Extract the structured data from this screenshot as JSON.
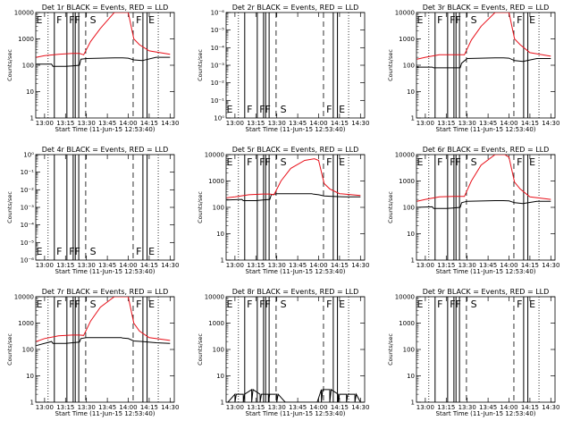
{
  "figure": {
    "xlabel": "Start Time (11-Jun-15 12:53:40)",
    "ylabel": "Counts/sec",
    "x_tick_labels": [
      "13:00",
      "13:15",
      "13:30",
      "13:45",
      "14:00",
      "14:15",
      "14:30"
    ],
    "y_tick_labels": [
      "1",
      "10",
      "100",
      "1000",
      "10000"
    ],
    "flag_letters": [
      "E",
      "F",
      "FF",
      "S",
      "F",
      "E"
    ],
    "colors": {
      "events": "#000000",
      "lld": "#e8101a"
    }
  },
  "chart_data": [
    {
      "type": "line",
      "title": "Det 1r BLACK = Events, RED = LLD",
      "xlim": [
        "12:53:40",
        "14:33:00"
      ],
      "ylim": [
        1,
        10000
      ],
      "yscale": "log",
      "series": [
        {
          "name": "Events",
          "x": [
            "12:54",
            "13:05",
            "13:06",
            "13:15",
            "13:20",
            "13:25",
            "13:26",
            "13:30",
            "13:50",
            "13:55",
            "13:56",
            "14:00",
            "14:04",
            "14:10",
            "14:20",
            "14:30"
          ],
          "y": [
            110,
            110,
            90,
            90,
            95,
            100,
            170,
            180,
            190,
            190,
            190,
            185,
            160,
            150,
            200,
            200
          ]
        },
        {
          "name": "LLD",
          "x": [
            "12:54",
            "13:00",
            "13:10",
            "13:20",
            "13:25",
            "13:28",
            "13:33",
            "13:40",
            "13:50",
            "13:57",
            "14:00",
            "14:04",
            "14:08",
            "14:15",
            "14:30"
          ],
          "y": [
            200,
            230,
            260,
            280,
            280,
            250,
            800,
            2500,
            10000,
            10000,
            10000,
            1000,
            600,
            350,
            260
          ]
        }
      ]
    },
    {
      "type": "line",
      "title": "Det 2r BLACK = Events, RED = LLD",
      "xlim": [
        "12:53:40",
        "14:33:00"
      ],
      "ylim": [
        1,
        1e-06
      ],
      "yscale": "log",
      "y_tick_labels": [
        "10⁰",
        "10⁻¹",
        "10⁻²",
        "10⁻³",
        "10⁻⁴",
        "10⁻⁵",
        "10⁻⁶"
      ],
      "series": []
    },
    {
      "type": "line",
      "title": "Det 3r BLACK = Events, RED = LLD",
      "xlim": [
        "12:53:40",
        "14:33:00"
      ],
      "ylim": [
        1,
        10000
      ],
      "yscale": "log",
      "series": [
        {
          "name": "Events",
          "x": [
            "12:54",
            "13:05",
            "13:06",
            "13:15",
            "13:20",
            "13:25",
            "13:26",
            "13:30",
            "13:50",
            "13:55",
            "13:56",
            "14:00",
            "14:04",
            "14:10",
            "14:20",
            "14:30"
          ],
          "y": [
            85,
            85,
            80,
            80,
            80,
            80,
            120,
            180,
            190,
            190,
            190,
            185,
            150,
            140,
            180,
            180
          ]
        },
        {
          "name": "LLD",
          "x": [
            "12:54",
            "13:00",
            "13:10",
            "13:20",
            "13:25",
            "13:28",
            "13:33",
            "13:40",
            "13:50",
            "13:57",
            "14:00",
            "14:04",
            "14:08",
            "14:15",
            "14:30"
          ],
          "y": [
            170,
            200,
            250,
            250,
            250,
            250,
            900,
            3000,
            10000,
            10000,
            10000,
            1000,
            600,
            300,
            220
          ]
        }
      ]
    },
    {
      "type": "line",
      "title": "Det 4r BLACK = Events, RED = LLD",
      "xlim": [
        "12:53:40",
        "14:33:00"
      ],
      "ylim": [
        1e-06,
        1
      ],
      "yscale": "log",
      "y_tick_labels": [
        "10⁻⁶",
        "10⁻⁵",
        "10⁻⁴",
        "10⁻³",
        "10⁻²",
        "10⁻¹",
        "10⁰"
      ],
      "series": []
    },
    {
      "type": "line",
      "title": "Det 5r BLACK = Events, RED = LLD",
      "xlim": [
        "12:53:40",
        "14:33:00"
      ],
      "ylim": [
        1,
        10000
      ],
      "yscale": "log",
      "series": [
        {
          "name": "Events",
          "x": [
            "12:54",
            "13:05",
            "13:06",
            "13:15",
            "13:20",
            "13:25",
            "13:26",
            "13:30",
            "13:50",
            "13:55",
            "13:56",
            "14:00",
            "14:04",
            "14:10",
            "14:20",
            "14:30"
          ],
          "y": [
            190,
            200,
            180,
            180,
            190,
            200,
            300,
            330,
            330,
            330,
            320,
            300,
            270,
            260,
            250,
            250
          ]
        },
        {
          "name": "LLD",
          "x": [
            "12:54",
            "13:00",
            "13:10",
            "13:20",
            "13:25",
            "13:28",
            "13:33",
            "13:40",
            "13:50",
            "13:57",
            "14:00",
            "14:04",
            "14:08",
            "14:15",
            "14:30"
          ],
          "y": [
            230,
            250,
            300,
            320,
            320,
            300,
            1000,
            3000,
            6000,
            7000,
            6000,
            800,
            500,
            330,
            280
          ]
        }
      ]
    },
    {
      "type": "line",
      "title": "Det 6r BLACK = Events, RED = LLD",
      "xlim": [
        "12:53:40",
        "14:33:00"
      ],
      "ylim": [
        1,
        10000
      ],
      "yscale": "log",
      "series": [
        {
          "name": "Events",
          "x": [
            "12:54",
            "13:05",
            "13:06",
            "13:15",
            "13:20",
            "13:25",
            "13:26",
            "13:30",
            "13:50",
            "13:55",
            "13:56",
            "14:00",
            "14:04",
            "14:10",
            "14:20",
            "14:30"
          ],
          "y": [
            100,
            105,
            90,
            90,
            95,
            100,
            150,
            170,
            180,
            180,
            180,
            175,
            150,
            140,
            170,
            170
          ]
        },
        {
          "name": "LLD",
          "x": [
            "12:54",
            "13:00",
            "13:10",
            "13:20",
            "13:25",
            "13:28",
            "13:33",
            "13:40",
            "13:50",
            "13:57",
            "14:00",
            "14:04",
            "14:08",
            "14:15",
            "14:30"
          ],
          "y": [
            170,
            200,
            250,
            260,
            260,
            260,
            1000,
            4000,
            10000,
            10000,
            8000,
            900,
            500,
            250,
            200
          ]
        }
      ]
    },
    {
      "type": "line",
      "title": "Det 7r BLACK = Events, RED = LLD",
      "xlim": [
        "12:53:40",
        "14:33:00"
      ],
      "ylim": [
        1,
        10000
      ],
      "yscale": "log",
      "series": [
        {
          "name": "Events",
          "x": [
            "12:54",
            "13:05",
            "13:06",
            "13:15",
            "13:20",
            "13:25",
            "13:26",
            "13:30",
            "13:50",
            "13:55",
            "13:56",
            "14:00",
            "14:04",
            "14:10",
            "14:20",
            "14:30"
          ],
          "y": [
            140,
            200,
            170,
            170,
            180,
            190,
            260,
            280,
            280,
            280,
            270,
            260,
            210,
            200,
            180,
            170
          ]
        },
        {
          "name": "LLD",
          "x": [
            "12:54",
            "13:00",
            "13:10",
            "13:20",
            "13:25",
            "13:28",
            "13:33",
            "13:40",
            "13:50",
            "13:57",
            "14:00",
            "14:04",
            "14:08",
            "14:15",
            "14:30"
          ],
          "y": [
            200,
            260,
            330,
            350,
            350,
            340,
            1200,
            4000,
            10000,
            10000,
            10000,
            1000,
            500,
            280,
            220
          ]
        }
      ]
    },
    {
      "type": "line",
      "title": "Det 8r BLACK = Events, RED = LLD",
      "xlim": [
        "12:53:40",
        "14:33:00"
      ],
      "ylim": [
        1,
        10000
      ],
      "yscale": "log",
      "series": [
        {
          "name": "Events",
          "x": [
            "12:54",
            "13:00",
            "13:06",
            "13:12",
            "13:18",
            "13:24",
            "13:30",
            "13:36",
            "13:42",
            "13:48",
            "13:54",
            "13:58",
            "14:02",
            "14:08",
            "14:14",
            "14:20",
            "14:26",
            "14:30"
          ],
          "y": [
            1,
            2,
            2,
            3,
            2,
            2,
            2,
            1,
            1,
            1,
            1,
            1,
            3,
            3,
            2,
            2,
            2,
            1
          ]
        }
      ]
    },
    {
      "type": "line",
      "title": "Det 9r BLACK = Events, RED = LLD",
      "xlim": [
        "12:53:40",
        "14:33:00"
      ],
      "ylim": [
        1,
        10000
      ],
      "yscale": "log",
      "series": []
    }
  ]
}
